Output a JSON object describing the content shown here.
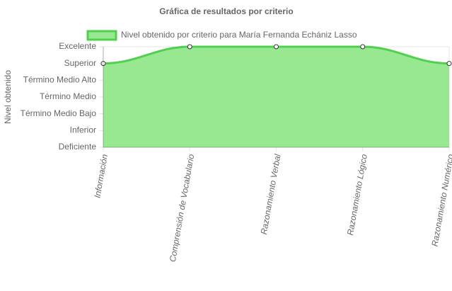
{
  "chart_data": {
    "type": "area",
    "title": "Gráfica de resultados por criterio",
    "y_label": "Nivel obtenido",
    "categories": [
      "Información",
      "Comprensión de Vocabulario",
      "Razonamiento Verbal",
      "Razonamiento Lógico",
      "Razonamiento Numérico"
    ],
    "series": [
      {
        "name": "Nivel obtenido por criterio para María Fernanda Echániz Lasso",
        "color": "#4fd14f",
        "fill": "#98e892",
        "values": [
          5,
          6,
          6,
          6,
          5
        ]
      }
    ],
    "ylim": [
      0,
      6
    ],
    "yticks": [
      {
        "value": 0,
        "label": "Deficiente"
      },
      {
        "value": 1,
        "label": "Inferior"
      },
      {
        "value": 2,
        "label": "Término Medio Bajo"
      },
      {
        "value": 3,
        "label": "Término Medio"
      },
      {
        "value": 4,
        "label": "Término Medio Alto"
      },
      {
        "value": 5,
        "label": "Superior"
      },
      {
        "value": 6,
        "label": "Excelente"
      }
    ],
    "grid": true,
    "legend": "top"
  }
}
